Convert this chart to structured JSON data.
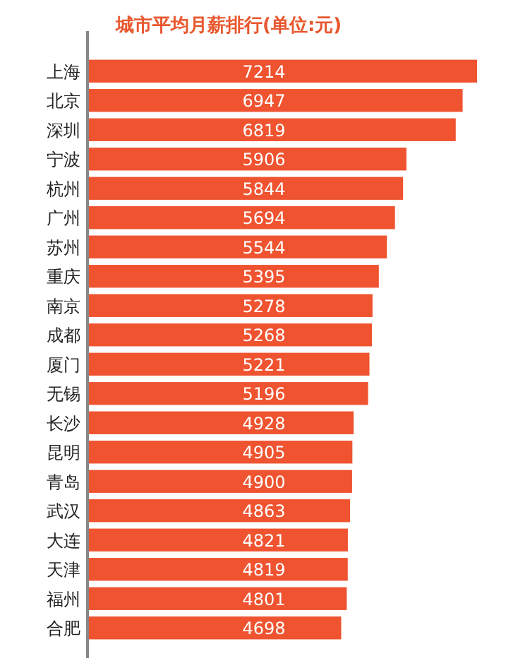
{
  "chart_data": {
    "type": "bar",
    "orientation": "horizontal",
    "title": "城市平均月薪排行(单位:元)",
    "categories": [
      "上海",
      "北京",
      "深圳",
      "宁波",
      "杭州",
      "广州",
      "苏州",
      "重庆",
      "南京",
      "成都",
      "厦门",
      "无锡",
      "长沙",
      "昆明",
      "青岛",
      "武汉",
      "大连",
      "天津",
      "福州",
      "合肥"
    ],
    "values": [
      7214,
      6947,
      6819,
      5906,
      5844,
      5694,
      5544,
      5395,
      5278,
      5268,
      5221,
      5196,
      4928,
      4905,
      4900,
      4863,
      4821,
      4819,
      4801,
      4698
    ],
    "color": "#ef5330",
    "data_labels": true
  }
}
